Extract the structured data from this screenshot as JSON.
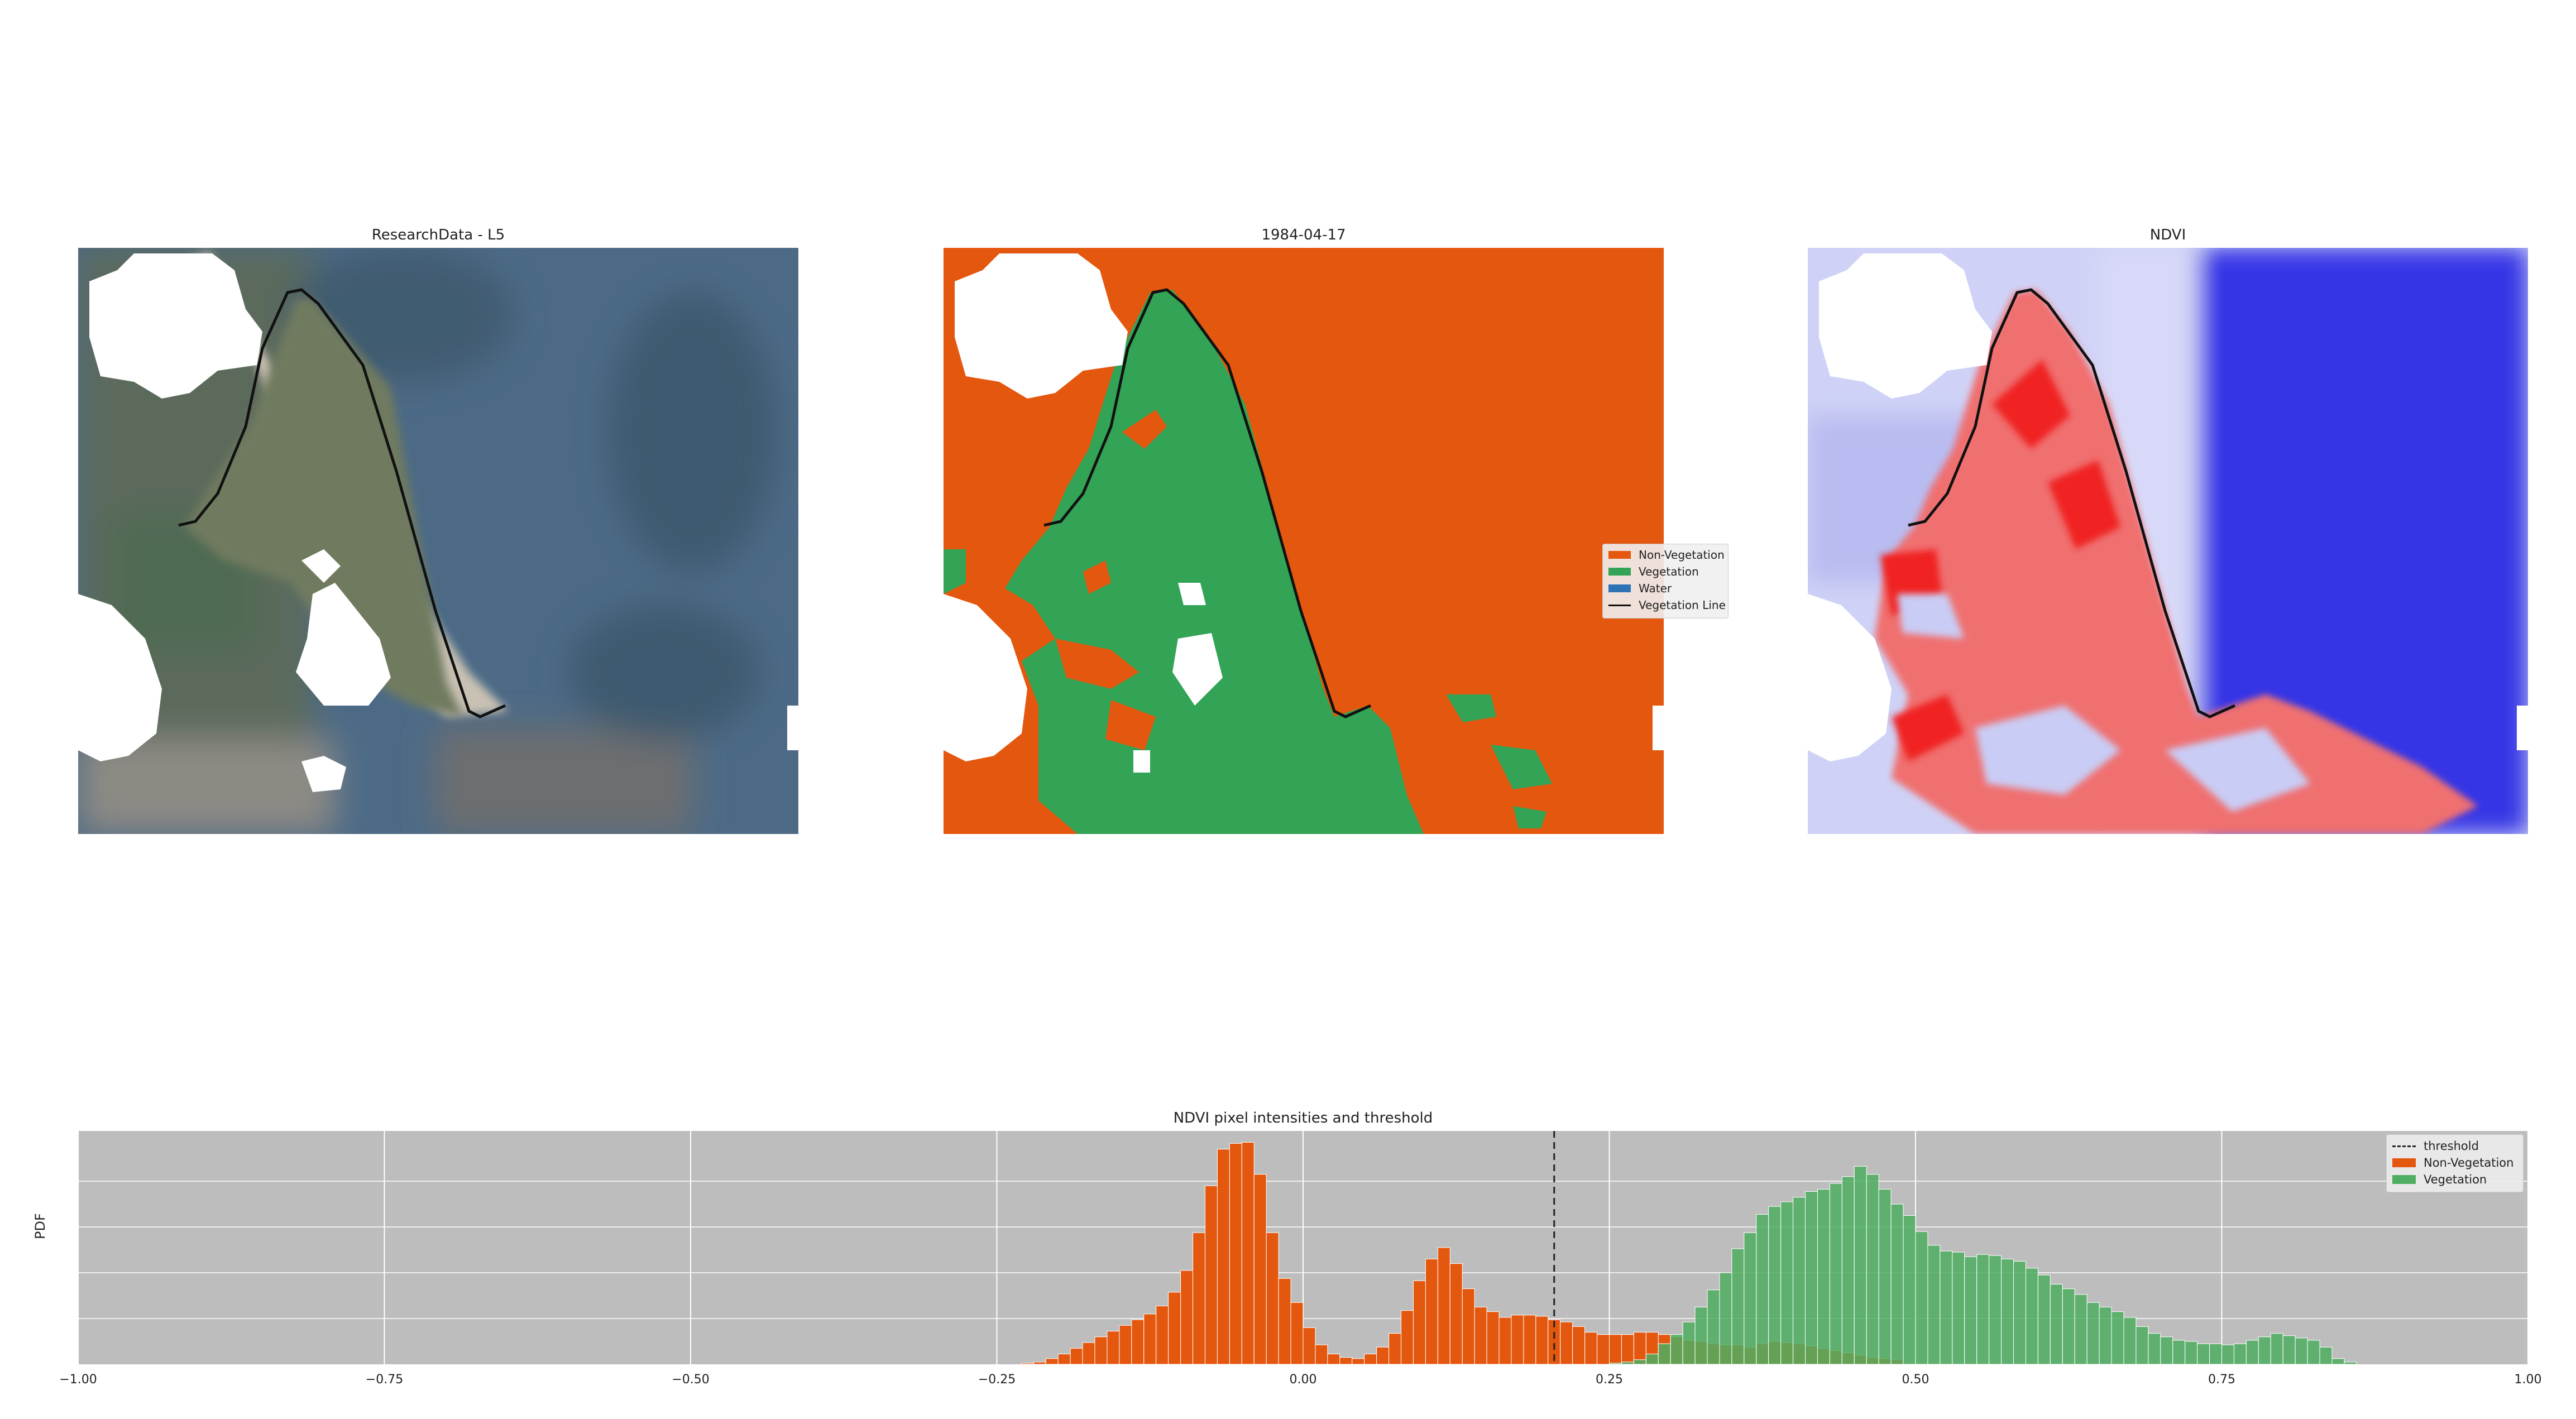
{
  "panels": {
    "rgb": {
      "title": "ResearchData - L5"
    },
    "classified": {
      "title": "1984-04-17",
      "legend": [
        {
          "label": "Non-Vegetation",
          "color": "#e4570e"
        },
        {
          "label": "Vegetation",
          "color": "#33a355"
        },
        {
          "label": "Water",
          "color": "#2b73b5"
        },
        {
          "label": "Vegetation Line",
          "color": "#111111"
        }
      ]
    },
    "ndvi": {
      "title": "NDVI"
    }
  },
  "chart_data": {
    "type": "bar",
    "title": "NDVI pixel intensities and threshold",
    "xlabel": "",
    "ylabel": "PDF",
    "xlim": [
      -1.0,
      1.0
    ],
    "xticks": [
      "−1.00",
      "−0.75",
      "−0.50",
      "−0.25",
      "0.00",
      "0.25",
      "0.50",
      "0.75",
      "1.00"
    ],
    "tick_values": [
      -1.0,
      -0.75,
      -0.5,
      -0.25,
      0.0,
      0.25,
      0.5,
      0.75,
      1.0
    ],
    "threshold": 0.205,
    "grid": true,
    "legend_position": "top-right",
    "legend": [
      "threshold",
      "Non-Vegetation",
      "Vegetation"
    ],
    "colors": {
      "non_vegetation": "#e4570e",
      "vegetation": "#4fae62",
      "threshold": "#222222",
      "background": "#bdbdbd"
    },
    "series": [
      {
        "name": "Non-Vegetation",
        "bin_start": -0.23,
        "bin_width": 0.01,
        "values": [
          0.1,
          0.2,
          0.5,
          0.9,
          1.4,
          1.9,
          2.4,
          2.9,
          3.4,
          3.9,
          4.4,
          5.1,
          6.3,
          8.2,
          11.5,
          15.6,
          18.8,
          19.3,
          19.4,
          16.6,
          11.5,
          7.5,
          5.4,
          3.2,
          1.7,
          0.9,
          0.6,
          0.5,
          0.9,
          1.5,
          2.7,
          4.7,
          7.3,
          9.2,
          10.2,
          8.8,
          6.6,
          5.0,
          4.6,
          4.1,
          4.3,
          4.3,
          4.2,
          3.9,
          3.7,
          3.3,
          2.8,
          2.6,
          2.6,
          2.6,
          2.8,
          2.8,
          2.6,
          2.4,
          2.1,
          2.0,
          1.8,
          1.7,
          1.7,
          1.5,
          1.8,
          2.0,
          1.9,
          1.8,
          1.6,
          1.4,
          1.2,
          1.0,
          0.8,
          0.6,
          0.5,
          0.4
        ]
      },
      {
        "name": "Vegetation",
        "bin_start": 0.25,
        "bin_width": 0.01,
        "values": [
          0.1,
          0.2,
          0.4,
          0.9,
          1.8,
          2.6,
          3.7,
          5.0,
          6.5,
          8.0,
          10.1,
          11.5,
          13.1,
          13.8,
          14.2,
          14.6,
          15.1,
          15.3,
          15.8,
          16.4,
          17.3,
          16.6,
          15.3,
          14.0,
          13.0,
          11.6,
          10.4,
          9.9,
          9.8,
          9.4,
          9.6,
          9.5,
          9.2,
          9.0,
          8.4,
          7.8,
          7.0,
          6.6,
          6.1,
          5.4,
          5.0,
          4.6,
          4.1,
          3.3,
          2.7,
          2.4,
          2.1,
          2.0,
          1.8,
          1.8,
          1.7,
          1.8,
          2.1,
          2.4,
          2.7,
          2.5,
          2.3,
          2.1,
          1.5,
          0.5,
          0.2
        ]
      }
    ]
  }
}
